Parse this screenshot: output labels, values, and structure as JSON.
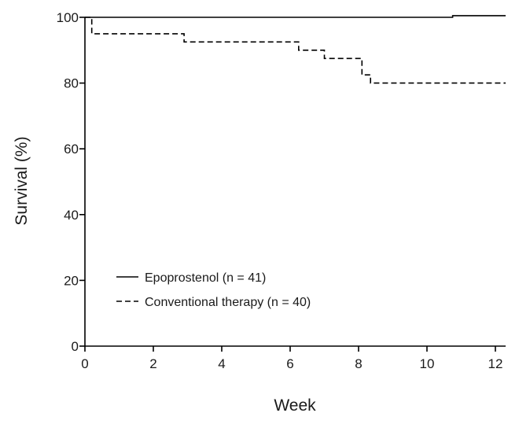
{
  "chart_data": {
    "type": "line",
    "title": "",
    "xlabel": "Week",
    "ylabel": "Survival (%)",
    "xlim": [
      0,
      12.3
    ],
    "ylim": [
      0,
      100
    ],
    "x_ticks": [
      0,
      2,
      4,
      6,
      8,
      10,
      12
    ],
    "y_ticks": [
      0,
      20,
      40,
      60,
      80,
      100
    ],
    "x_tick_labels": [
      "0",
      "2",
      "4",
      "6",
      "8",
      "10",
      "12"
    ],
    "y_tick_labels": [
      "0",
      "20",
      "40",
      "60",
      "80",
      "100"
    ],
    "grid": false,
    "legend_position": "bottom-left",
    "series": [
      {
        "name": "Epoprostenol (n = 41)",
        "line_style": "solid",
        "color": "#000000",
        "step": true,
        "x": [
          0,
          10.75,
          12.3
        ],
        "y": [
          100,
          100.5,
          100.5
        ]
      },
      {
        "name": "Conventional therapy (n = 40)",
        "line_style": "dashed",
        "color": "#000000",
        "step": true,
        "x": [
          0,
          0.2,
          2.9,
          6.25,
          7.0,
          8.1,
          8.35,
          12.3
        ],
        "y": [
          100,
          95,
          92.5,
          90,
          87.5,
          82.5,
          80,
          80
        ]
      }
    ]
  }
}
